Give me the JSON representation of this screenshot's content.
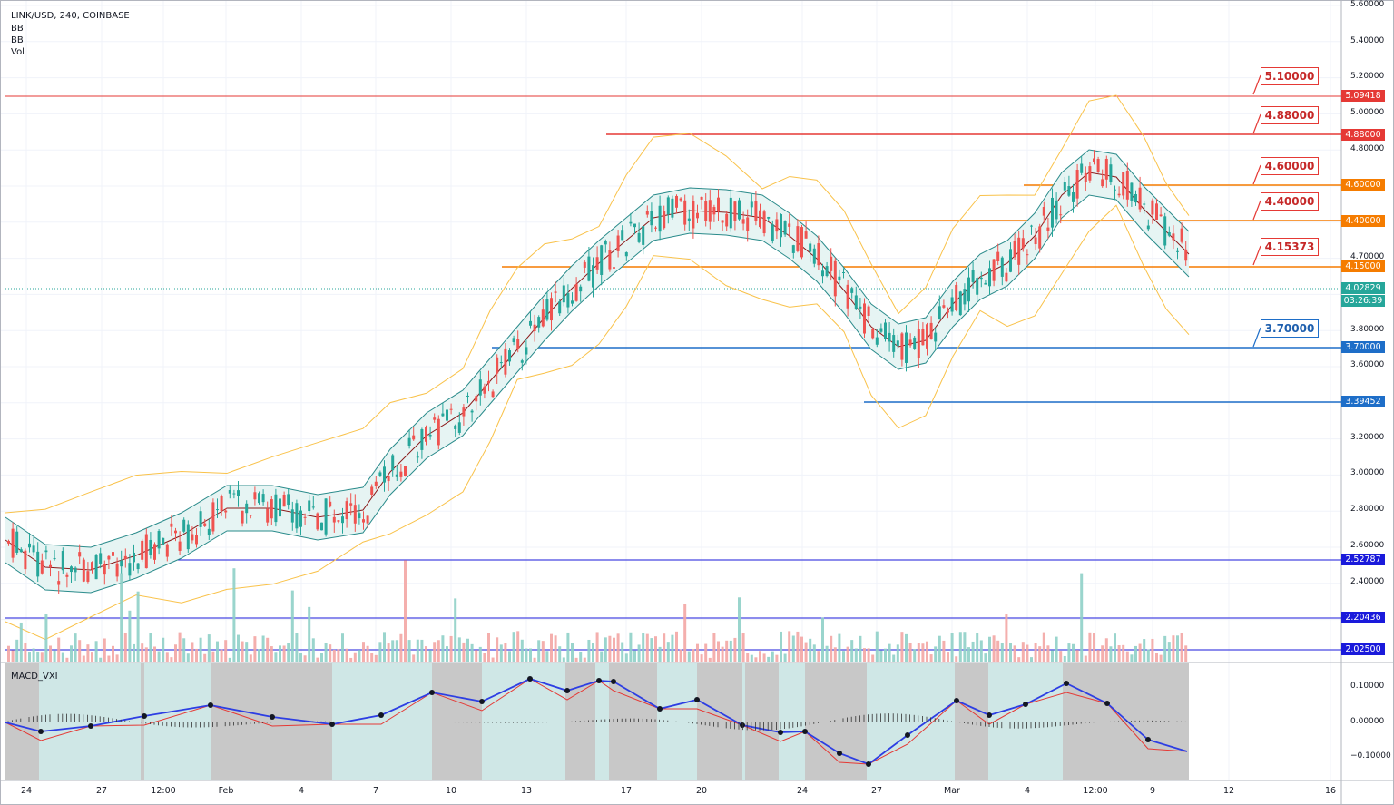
{
  "header": {
    "symbol_line": "LINK/USD, 240, COINBASE",
    "indicators": [
      "BB",
      "BB",
      "Vol"
    ]
  },
  "macd_label": "MACD_VXI",
  "colors": {
    "up": "#26a69a",
    "down": "#ef5350",
    "red_level": "#e53935",
    "orange_level": "#f57c00",
    "blue_level": "#1e6ec8",
    "navy_level": "#1a1adb",
    "bb_outer": "#f9c24a",
    "bb_inner": "#2a8b8b",
    "basis": "#8b1a1a",
    "macd_blue": "#2d3ee3",
    "macd_red": "#e53935"
  },
  "price_axis": {
    "labels": [
      "5.60000",
      "5.40000",
      "5.20000",
      "5.00000",
      "4.80000",
      "4.70000",
      "3.80000",
      "3.60000",
      "3.20000",
      "3.00000",
      "2.80000",
      "2.60000",
      "2.40000"
    ]
  },
  "price_tags": [
    {
      "text": "5.09418",
      "color": "#e53935"
    },
    {
      "text": "4.88000",
      "color": "#e53935"
    },
    {
      "text": "4.60000",
      "color": "#f57c00"
    },
    {
      "text": "4.40000",
      "color": "#f57c00"
    },
    {
      "text": "4.15000",
      "color": "#f57c00"
    },
    {
      "text": "4.02829",
      "color": "#26a69a"
    },
    {
      "text": "03:26:39",
      "color": "#26a69a"
    },
    {
      "text": "3.70000",
      "color": "#1e6ec8"
    },
    {
      "text": "3.39452",
      "color": "#1e6ec8"
    },
    {
      "text": "2.52787",
      "color": "#1a1adb"
    },
    {
      "text": "2.20436",
      "color": "#1a1adb"
    },
    {
      "text": "2.02500",
      "color": "#1a1adb"
    }
  ],
  "callouts": [
    {
      "text": "5.10000",
      "color": "#e53935"
    },
    {
      "text": "4.88000",
      "color": "#e53935"
    },
    {
      "text": "4.60000",
      "color": "#e53935"
    },
    {
      "text": "4.40000",
      "color": "#e53935"
    },
    {
      "text": "4.15373",
      "color": "#e53935"
    },
    {
      "text": "3.70000",
      "color": "#1e6ec8"
    }
  ],
  "macd_axis": [
    "0.10000",
    "0.00000",
    "−0.10000"
  ],
  "time_axis": [
    "24",
    "27",
    "12:00",
    "Feb",
    "4",
    "7",
    "10",
    "13",
    "17",
    "20",
    "24",
    "27",
    "Mar",
    "4",
    "12:00",
    "9",
    "12",
    "16"
  ]
}
